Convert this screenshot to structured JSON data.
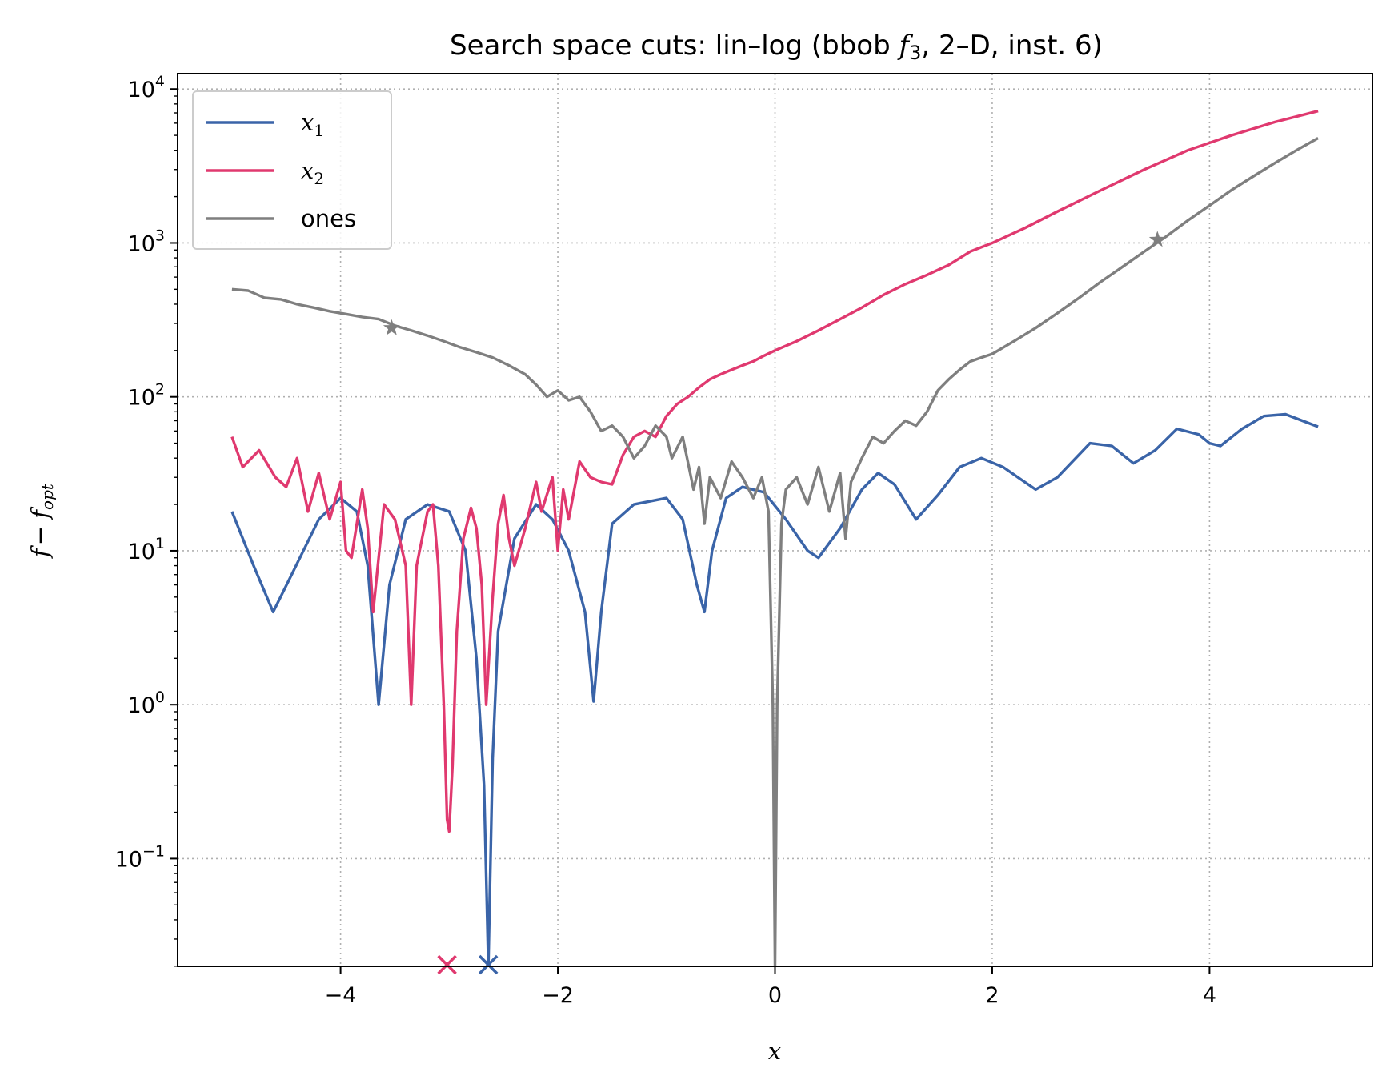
{
  "chart_data": {
    "type": "line",
    "title": "Search space cuts: lin–log (bbob f3, 2–D, inst. 6)",
    "title_parts": {
      "pre": "Search space cuts: lin–log (bbob ",
      "f": "f",
      "sub": "3",
      "post": ", 2–D, inst. 6)"
    },
    "xlabel": "x",
    "ylabel": {
      "f": "f",
      "minus": "− ",
      "f2": "f",
      "sub": "opt"
    },
    "xlim": [
      -5.5,
      5.5
    ],
    "ylim_log10": [
      -1.7,
      4.1
    ],
    "yscale": "log",
    "grid": true,
    "legend_placement": "top-left",
    "x_ticks": [
      {
        "v": -4,
        "label": "−4"
      },
      {
        "v": -2,
        "label": "−2"
      },
      {
        "v": 0,
        "label": "0"
      },
      {
        "v": 2,
        "label": "2"
      },
      {
        "v": 4,
        "label": "4"
      }
    ],
    "y_ticks": [
      {
        "e": -1,
        "label": "−1"
      },
      {
        "e": 0,
        "label": "0"
      },
      {
        "e": 1,
        "label": "1"
      },
      {
        "e": 2,
        "label": "2"
      },
      {
        "e": 3,
        "label": "3"
      },
      {
        "e": 4,
        "label": "4"
      }
    ],
    "series": [
      {
        "name": "x1",
        "legend_base": "x",
        "legend_sub": "1",
        "color": "#3a64a8",
        "points": [
          [
            -5.0,
            18
          ],
          [
            -4.8,
            8
          ],
          [
            -4.62,
            4
          ],
          [
            -4.45,
            7
          ],
          [
            -4.2,
            16
          ],
          [
            -4.0,
            22
          ],
          [
            -3.85,
            18
          ],
          [
            -3.75,
            8
          ],
          [
            -3.65,
            1.0
          ],
          [
            -3.55,
            6
          ],
          [
            -3.4,
            16
          ],
          [
            -3.2,
            20
          ],
          [
            -3.0,
            18
          ],
          [
            -2.85,
            10
          ],
          [
            -2.75,
            2
          ],
          [
            -2.68,
            0.3
          ],
          [
            -2.64,
            0.02
          ],
          [
            -2.6,
            0.45
          ],
          [
            -2.55,
            3
          ],
          [
            -2.4,
            12
          ],
          [
            -2.2,
            20
          ],
          [
            -2.05,
            16
          ],
          [
            -1.9,
            10
          ],
          [
            -1.75,
            4
          ],
          [
            -1.67,
            1.05
          ],
          [
            -1.6,
            4
          ],
          [
            -1.5,
            15
          ],
          [
            -1.3,
            20
          ],
          [
            -1.0,
            22
          ],
          [
            -0.85,
            16
          ],
          [
            -0.72,
            6
          ],
          [
            -0.65,
            4
          ],
          [
            -0.58,
            10
          ],
          [
            -0.45,
            22
          ],
          [
            -0.3,
            26
          ],
          [
            -0.1,
            24
          ],
          [
            0.1,
            16
          ],
          [
            0.3,
            10
          ],
          [
            0.4,
            9
          ],
          [
            0.6,
            14
          ],
          [
            0.8,
            25
          ],
          [
            0.95,
            32
          ],
          [
            1.1,
            27
          ],
          [
            1.3,
            16
          ],
          [
            1.5,
            23
          ],
          [
            1.7,
            35
          ],
          [
            1.9,
            40
          ],
          [
            2.1,
            35
          ],
          [
            2.4,
            25
          ],
          [
            2.6,
            30
          ],
          [
            2.9,
            50
          ],
          [
            3.1,
            48
          ],
          [
            3.3,
            37
          ],
          [
            3.5,
            45
          ],
          [
            3.7,
            62
          ],
          [
            3.9,
            57
          ],
          [
            4.0,
            50
          ],
          [
            4.1,
            48
          ],
          [
            4.3,
            62
          ],
          [
            4.5,
            75
          ],
          [
            4.7,
            77
          ],
          [
            5.0,
            64
          ]
        ]
      },
      {
        "name": "x2",
        "legend_base": "x",
        "legend_sub": "2",
        "color": "#e0396f",
        "points": [
          [
            -5.0,
            55
          ],
          [
            -4.9,
            35
          ],
          [
            -4.75,
            45
          ],
          [
            -4.6,
            30
          ],
          [
            -4.5,
            26
          ],
          [
            -4.4,
            40
          ],
          [
            -4.3,
            18
          ],
          [
            -4.2,
            32
          ],
          [
            -4.1,
            16
          ],
          [
            -4.0,
            28
          ],
          [
            -3.95,
            10
          ],
          [
            -3.9,
            9
          ],
          [
            -3.8,
            25
          ],
          [
            -3.75,
            14
          ],
          [
            -3.7,
            4
          ],
          [
            -3.6,
            20
          ],
          [
            -3.5,
            16
          ],
          [
            -3.4,
            8
          ],
          [
            -3.35,
            1.0
          ],
          [
            -3.3,
            8
          ],
          [
            -3.2,
            18
          ],
          [
            -3.15,
            20
          ],
          [
            -3.1,
            8
          ],
          [
            -3.05,
            1.0
          ],
          [
            -3.02,
            0.18
          ],
          [
            -3.0,
            0.15
          ],
          [
            -2.97,
            0.4
          ],
          [
            -2.93,
            3
          ],
          [
            -2.87,
            12
          ],
          [
            -2.8,
            19
          ],
          [
            -2.75,
            14
          ],
          [
            -2.7,
            6
          ],
          [
            -2.66,
            1.0
          ],
          [
            -2.6,
            5
          ],
          [
            -2.55,
            15
          ],
          [
            -2.5,
            23
          ],
          [
            -2.45,
            12
          ],
          [
            -2.4,
            8
          ],
          [
            -2.3,
            14
          ],
          [
            -2.2,
            28
          ],
          [
            -2.15,
            18
          ],
          [
            -2.05,
            30
          ],
          [
            -2.0,
            10
          ],
          [
            -1.95,
            25
          ],
          [
            -1.9,
            16
          ],
          [
            -1.8,
            38
          ],
          [
            -1.7,
            30
          ],
          [
            -1.6,
            28
          ],
          [
            -1.5,
            27
          ],
          [
            -1.4,
            42
          ],
          [
            -1.3,
            55
          ],
          [
            -1.2,
            60
          ],
          [
            -1.1,
            55
          ],
          [
            -1.0,
            75
          ],
          [
            -0.9,
            90
          ],
          [
            -0.8,
            100
          ],
          [
            -0.7,
            115
          ],
          [
            -0.6,
            130
          ],
          [
            -0.5,
            140
          ],
          [
            -0.4,
            150
          ],
          [
            -0.3,
            160
          ],
          [
            -0.2,
            170
          ],
          [
            -0.1,
            185
          ],
          [
            0.0,
            200
          ],
          [
            0.2,
            230
          ],
          [
            0.4,
            270
          ],
          [
            0.6,
            320
          ],
          [
            0.8,
            380
          ],
          [
            1.0,
            460
          ],
          [
            1.2,
            540
          ],
          [
            1.4,
            620
          ],
          [
            1.6,
            720
          ],
          [
            1.8,
            880
          ],
          [
            2.0,
            1000
          ],
          [
            2.3,
            1250
          ],
          [
            2.6,
            1600
          ],
          [
            3.0,
            2200
          ],
          [
            3.4,
            3000
          ],
          [
            3.8,
            4000
          ],
          [
            4.2,
            5000
          ],
          [
            4.6,
            6100
          ],
          [
            5.0,
            7200
          ]
        ]
      },
      {
        "name": "ones",
        "legend_base": "ones",
        "legend_sub": "",
        "color": "#7f7f7f",
        "points": [
          [
            -5.0,
            500
          ],
          [
            -4.85,
            490
          ],
          [
            -4.7,
            440
          ],
          [
            -4.55,
            430
          ],
          [
            -4.4,
            400
          ],
          [
            -4.25,
            380
          ],
          [
            -4.1,
            360
          ],
          [
            -3.95,
            345
          ],
          [
            -3.8,
            330
          ],
          [
            -3.65,
            320
          ],
          [
            -3.5,
            290
          ],
          [
            -3.35,
            270
          ],
          [
            -3.2,
            250
          ],
          [
            -3.05,
            230
          ],
          [
            -2.9,
            210
          ],
          [
            -2.75,
            195
          ],
          [
            -2.6,
            180
          ],
          [
            -2.45,
            160
          ],
          [
            -2.3,
            140
          ],
          [
            -2.2,
            120
          ],
          [
            -2.1,
            100
          ],
          [
            -2.0,
            110
          ],
          [
            -1.9,
            95
          ],
          [
            -1.8,
            100
          ],
          [
            -1.7,
            80
          ],
          [
            -1.6,
            60
          ],
          [
            -1.5,
            65
          ],
          [
            -1.4,
            55
          ],
          [
            -1.3,
            40
          ],
          [
            -1.2,
            48
          ],
          [
            -1.1,
            65
          ],
          [
            -1.0,
            55
          ],
          [
            -0.95,
            40
          ],
          [
            -0.85,
            55
          ],
          [
            -0.75,
            25
          ],
          [
            -0.7,
            35
          ],
          [
            -0.65,
            15
          ],
          [
            -0.6,
            30
          ],
          [
            -0.5,
            22
          ],
          [
            -0.4,
            38
          ],
          [
            -0.3,
            30
          ],
          [
            -0.2,
            22
          ],
          [
            -0.12,
            30
          ],
          [
            -0.06,
            18
          ],
          [
            -0.02,
            1.0
          ],
          [
            0.0,
            0.02
          ],
          [
            0.02,
            1.0
          ],
          [
            0.06,
            15
          ],
          [
            0.1,
            25
          ],
          [
            0.2,
            30
          ],
          [
            0.3,
            20
          ],
          [
            0.4,
            35
          ],
          [
            0.5,
            18
          ],
          [
            0.6,
            32
          ],
          [
            0.65,
            12
          ],
          [
            0.7,
            28
          ],
          [
            0.8,
            40
          ],
          [
            0.9,
            55
          ],
          [
            1.0,
            50
          ],
          [
            1.1,
            60
          ],
          [
            1.2,
            70
          ],
          [
            1.3,
            65
          ],
          [
            1.4,
            80
          ],
          [
            1.5,
            110
          ],
          [
            1.6,
            130
          ],
          [
            1.7,
            150
          ],
          [
            1.8,
            170
          ],
          [
            1.9,
            180
          ],
          [
            2.0,
            190
          ],
          [
            2.2,
            230
          ],
          [
            2.4,
            280
          ],
          [
            2.6,
            350
          ],
          [
            2.8,
            440
          ],
          [
            3.0,
            560
          ],
          [
            3.2,
            700
          ],
          [
            3.4,
            880
          ],
          [
            3.6,
            1100
          ],
          [
            3.8,
            1400
          ],
          [
            4.0,
            1750
          ],
          [
            4.2,
            2200
          ],
          [
            4.4,
            2700
          ],
          [
            4.6,
            3300
          ],
          [
            4.8,
            4000
          ],
          [
            5.0,
            4800
          ]
        ]
      }
    ],
    "markers": [
      {
        "series": "ones",
        "symbol": "star",
        "x": -3.53,
        "y": 280
      },
      {
        "series": "ones",
        "symbol": "star",
        "x": 3.52,
        "y": 1050
      },
      {
        "series": "x2",
        "symbol": "cross",
        "x": -3.02,
        "y": 0.02
      },
      {
        "series": "x1",
        "symbol": "cross",
        "x": -2.64,
        "y": 0.02
      }
    ]
  }
}
